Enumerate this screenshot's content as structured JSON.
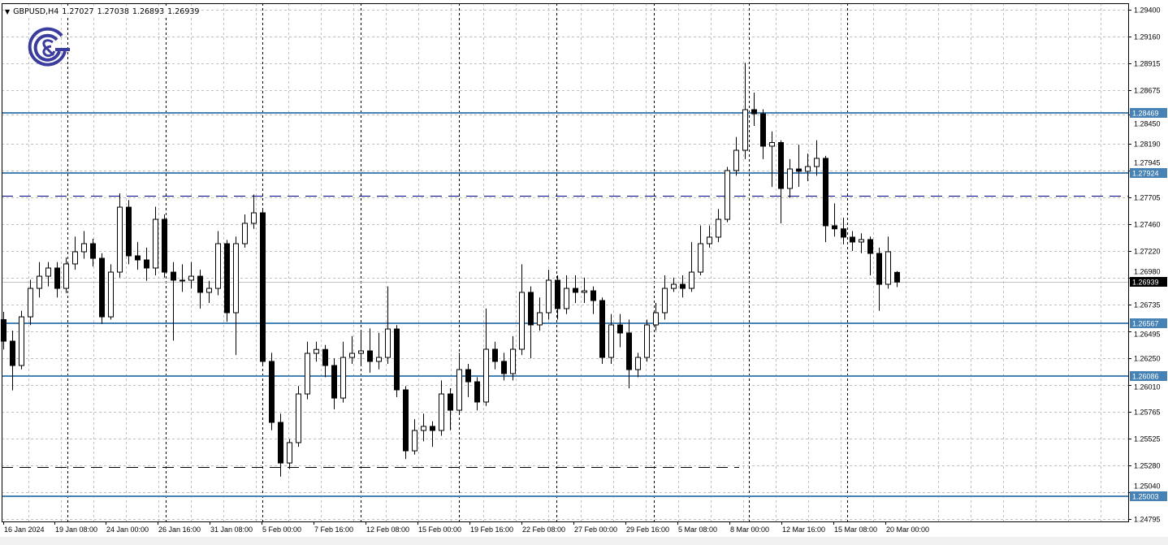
{
  "header": {
    "symbol": "GBPUSD,H4",
    "open": "1.27027",
    "high": "1.27038",
    "low": "1.26893",
    "close": "1.26939"
  },
  "logo": {
    "text": "C&G",
    "color": "#3a3d9e"
  },
  "colors": {
    "level_line": "#4682b4",
    "dashed_level": "#00008b",
    "bull_body": "#ffffff",
    "bear_body": "#000000",
    "current_price_bg": "#000000"
  },
  "chart_data": {
    "type": "candlestick",
    "title": "",
    "xlabel": "",
    "ylabel": "",
    "ylim": [
      1.24795,
      1.294
    ],
    "grid": true,
    "y_ticks": [
      "1.29400",
      "1.29160",
      "1.28915",
      "1.28675",
      "1.28450",
      "1.28190",
      "1.27945",
      "1.27705",
      "1.27460",
      "1.27220",
      "1.26980",
      "1.26735",
      "1.26495",
      "1.26250",
      "1.26010",
      "1.25765",
      "1.25525",
      "1.25280",
      "1.25040",
      "1.24795"
    ],
    "x_ticks": [
      "16 Jan 2024",
      "19 Jan 08:00",
      "24 Jan 00:00",
      "26 Jan 16:00",
      "31 Jan 08:00",
      "5 Feb 00:00",
      "7 Feb 16:00",
      "12 Feb 08:00",
      "15 Feb 00:00",
      "19 Feb 16:00",
      "22 Feb 08:00",
      "27 Feb 00:00",
      "29 Feb 16:00",
      "5 Mar 08:00",
      "8 Mar 00:00",
      "12 Mar 16:00",
      "15 Mar 08:00",
      "20 Mar 00:00"
    ],
    "levels": [
      {
        "price": "1.28469",
        "style": "solid"
      },
      {
        "price": "1.27924",
        "style": "solid"
      },
      {
        "price": "1.26567",
        "style": "solid"
      },
      {
        "price": "1.26086",
        "style": "solid"
      },
      {
        "price": "1.25003",
        "style": "solid"
      }
    ],
    "dashed_levels": [
      {
        "price": 1.2772,
        "color": "#00008b",
        "extent": "full"
      },
      {
        "price": 1.2527,
        "color": "#000000",
        "extent": "partial"
      }
    ],
    "current_price": "1.26939",
    "ohlc": [
      [
        1.266,
        1.2667,
        1.2633,
        1.26405
      ],
      [
        1.26405,
        1.265,
        1.2596,
        1.26185
      ],
      [
        1.26185,
        1.2668,
        1.2615,
        1.26625
      ],
      [
        1.26625,
        1.2696,
        1.2655,
        1.26882
      ],
      [
        1.26882,
        1.2712,
        1.268,
        1.26992
      ],
      [
        1.26992,
        1.2712,
        1.269,
        1.27066
      ],
      [
        1.27066,
        1.2712,
        1.268,
        1.26882
      ],
      [
        1.26882,
        1.2716,
        1.2684,
        1.27103
      ],
      [
        1.27103,
        1.2735,
        1.2705,
        1.27213
      ],
      [
        1.27213,
        1.274,
        1.2715,
        1.27286
      ],
      [
        1.27286,
        1.2733,
        1.2708,
        1.27154
      ],
      [
        1.27154,
        1.272,
        1.2656,
        1.26625
      ],
      [
        1.26625,
        1.271,
        1.266,
        1.27029
      ],
      [
        1.27029,
        1.2774,
        1.2698,
        1.27616
      ],
      [
        1.27616,
        1.2768,
        1.271,
        1.27176
      ],
      [
        1.27176,
        1.273,
        1.2705,
        1.27139
      ],
      [
        1.27139,
        1.2725,
        1.2695,
        1.27066
      ],
      [
        1.27066,
        1.2762,
        1.27,
        1.27506
      ],
      [
        1.27506,
        1.2755,
        1.2698,
        1.27029
      ],
      [
        1.27029,
        1.2712,
        1.2641,
        1.26956
      ],
      [
        1.26956,
        1.271,
        1.2685,
        1.26956
      ],
      [
        1.26956,
        1.2712,
        1.2688,
        1.26992
      ],
      [
        1.26992,
        1.2705,
        1.267,
        1.26846
      ],
      [
        1.26846,
        1.2695,
        1.2675,
        1.26882
      ],
      [
        1.26882,
        1.274,
        1.2682,
        1.27286
      ],
      [
        1.27286,
        1.2732,
        1.2658,
        1.26662
      ],
      [
        1.26662,
        1.2735,
        1.2628,
        1.27286
      ],
      [
        1.27286,
        1.2755,
        1.2725,
        1.2747
      ],
      [
        1.2747,
        1.2773,
        1.2742,
        1.27565
      ],
      [
        1.27565,
        1.276,
        1.2618,
        1.26222
      ],
      [
        1.26222,
        1.263,
        1.256,
        1.25671
      ],
      [
        1.25671,
        1.2575,
        1.2518,
        1.25304
      ],
      [
        1.25304,
        1.2552,
        1.2525,
        1.25488
      ],
      [
        1.25488,
        1.26,
        1.2545,
        1.25928
      ],
      [
        1.25928,
        1.264,
        1.2588,
        1.26295
      ],
      [
        1.26295,
        1.264,
        1.2622,
        1.2633
      ],
      [
        1.2633,
        1.2637,
        1.2608,
        1.26185
      ],
      [
        1.26185,
        1.2625,
        1.2579,
        1.25891
      ],
      [
        1.25891,
        1.264,
        1.2585,
        1.26258
      ],
      [
        1.26258,
        1.2645,
        1.262,
        1.26295
      ],
      [
        1.26295,
        1.265,
        1.262,
        1.26317
      ],
      [
        1.26317,
        1.2652,
        1.2612,
        1.26222
      ],
      [
        1.26222,
        1.2648,
        1.2615,
        1.26258
      ],
      [
        1.26258,
        1.269,
        1.262,
        1.26515
      ],
      [
        1.26515,
        1.2655,
        1.259,
        1.25965
      ],
      [
        1.25965,
        1.26,
        1.2534,
        1.25414
      ],
      [
        1.25414,
        1.257,
        1.2538,
        1.25598
      ],
      [
        1.25598,
        1.2575,
        1.255,
        1.25635
      ],
      [
        1.25635,
        1.2568,
        1.2545,
        1.25598
      ],
      [
        1.25598,
        1.2605,
        1.2555,
        1.25928
      ],
      [
        1.25928,
        1.2598,
        1.256,
        1.25781
      ],
      [
        1.25781,
        1.263,
        1.2575,
        1.26148
      ],
      [
        1.26148,
        1.262,
        1.259,
        1.26038
      ],
      [
        1.26038,
        1.2608,
        1.2578,
        1.25855
      ],
      [
        1.25855,
        1.267,
        1.2582,
        1.26332
      ],
      [
        1.26332,
        1.264,
        1.2615,
        1.26222
      ],
      [
        1.26222,
        1.263,
        1.2605,
        1.26112
      ],
      [
        1.26112,
        1.2645,
        1.2605,
        1.26332
      ],
      [
        1.26332,
        1.271,
        1.2628,
        1.26846
      ],
      [
        1.26846,
        1.269,
        1.2625,
        1.26552
      ],
      [
        1.26552,
        1.268,
        1.265,
        1.26662
      ],
      [
        1.26662,
        1.2705,
        1.266,
        1.26956
      ],
      [
        1.26956,
        1.27,
        1.266,
        1.26699
      ],
      [
        1.26699,
        1.27,
        1.2665,
        1.26882
      ],
      [
        1.26882,
        1.27,
        1.2675,
        1.26846
      ],
      [
        1.26846,
        1.2698,
        1.2675,
        1.2686
      ],
      [
        1.2686,
        1.269,
        1.2665,
        1.26772
      ],
      [
        1.26772,
        1.268,
        1.262,
        1.26258
      ],
      [
        1.26258,
        1.2665,
        1.262,
        1.26552
      ],
      [
        1.26552,
        1.2665,
        1.2635,
        1.26479
      ],
      [
        1.26479,
        1.266,
        1.2598,
        1.26148
      ],
      [
        1.26148,
        1.263,
        1.2608,
        1.26258
      ],
      [
        1.26258,
        1.266,
        1.2622,
        1.26552
      ],
      [
        1.26552,
        1.2675,
        1.265,
        1.26662
      ],
      [
        1.26662,
        1.27,
        1.266,
        1.26882
      ],
      [
        1.26882,
        1.2698,
        1.2685,
        1.26919
      ],
      [
        1.26919,
        1.27,
        1.268,
        1.26882
      ],
      [
        1.26882,
        1.273,
        1.2685,
        1.27029
      ],
      [
        1.27029,
        1.2745,
        1.27,
        1.27286
      ],
      [
        1.27286,
        1.2745,
        1.2725,
        1.27345
      ],
      [
        1.27345,
        1.276,
        1.273,
        1.27506
      ],
      [
        1.27506,
        1.2798,
        1.2748,
        1.27947
      ],
      [
        1.27947,
        1.2825,
        1.279,
        1.2813
      ],
      [
        1.2813,
        1.2892,
        1.2805,
        1.28497
      ],
      [
        1.28497,
        1.2865,
        1.2835,
        1.2846
      ],
      [
        1.2846,
        1.285,
        1.2805,
        1.28167
      ],
      [
        1.28167,
        1.283,
        1.278,
        1.282
      ],
      [
        1.282,
        1.2822,
        1.2747,
        1.27785
      ],
      [
        1.27785,
        1.2805,
        1.277,
        1.27961
      ],
      [
        1.27961,
        1.2818,
        1.278,
        1.2794
      ],
      [
        1.2794,
        1.281,
        1.2785,
        1.27983
      ],
      [
        1.27983,
        1.2822,
        1.279,
        1.28057
      ],
      [
        1.28057,
        1.2808,
        1.273,
        1.27448
      ],
      [
        1.27448,
        1.2765,
        1.2735,
        1.2742
      ],
      [
        1.2742,
        1.2752,
        1.2728,
        1.27345
      ],
      [
        1.27345,
        1.274,
        1.2722,
        1.27301
      ],
      [
        1.27301,
        1.2738,
        1.272,
        1.27323
      ],
      [
        1.27323,
        1.2735,
        1.27,
        1.27198
      ],
      [
        1.27198,
        1.2725,
        1.2668,
        1.26919
      ],
      [
        1.26919,
        1.2735,
        1.2688,
        1.27213
      ],
      [
        1.27027,
        1.27038,
        1.26893,
        1.26939
      ]
    ]
  }
}
